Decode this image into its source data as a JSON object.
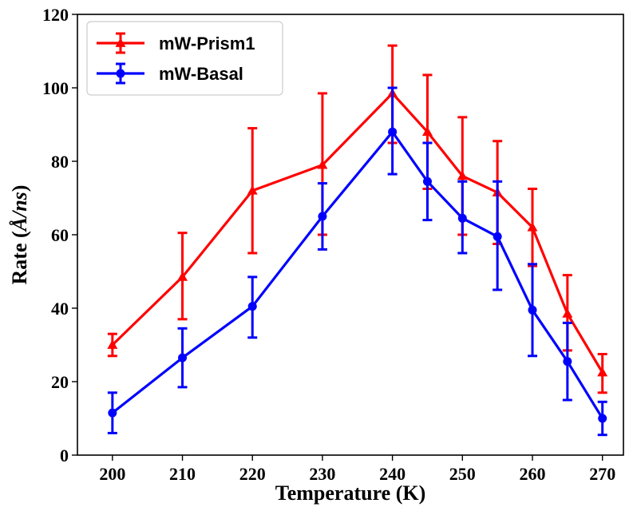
{
  "chart_data": {
    "type": "line",
    "xlabel": "Temperature (K)",
    "ylabel_prefix": "Rate (",
    "ylabel_unit": "Å/ns",
    "ylabel_suffix": ")",
    "xlim": [
      195,
      273
    ],
    "ylim": [
      0,
      120
    ],
    "x_ticks": [
      200,
      210,
      220,
      230,
      240,
      250,
      260,
      270
    ],
    "y_ticks": [
      0,
      20,
      40,
      60,
      80,
      100,
      120
    ],
    "grid": false,
    "legend_position": "top-left",
    "x": [
      200,
      210,
      220,
      230,
      240,
      245,
      250,
      255,
      260,
      265,
      270
    ],
    "series": [
      {
        "name": "mW-Prism1",
        "color": "#ff0000",
        "marker": "triangle",
        "values": [
          30,
          48.5,
          72,
          79,
          98.5,
          88,
          76,
          71.5,
          62,
          38.5,
          22.5
        ],
        "err_low": [
          27,
          37,
          55,
          60,
          85,
          72.5,
          60,
          57.5,
          51.5,
          28.5,
          17
        ],
        "err_high": [
          33,
          60.5,
          89,
          98.5,
          111.5,
          103.5,
          92,
          85.5,
          72.5,
          49,
          27.5
        ]
      },
      {
        "name": "mW-Basal",
        "color": "#0000ff",
        "marker": "circle",
        "values": [
          11.5,
          26.5,
          40.5,
          65,
          88,
          74.5,
          64.5,
          59.5,
          39.5,
          25.5,
          10
        ],
        "err_low": [
          6,
          18.5,
          32,
          56,
          76.5,
          64,
          55,
          45,
          27,
          15,
          5.5
        ],
        "err_high": [
          17,
          34.5,
          48.5,
          74,
          100,
          85,
          74.5,
          74.5,
          52,
          36,
          14.5
        ]
      }
    ]
  }
}
